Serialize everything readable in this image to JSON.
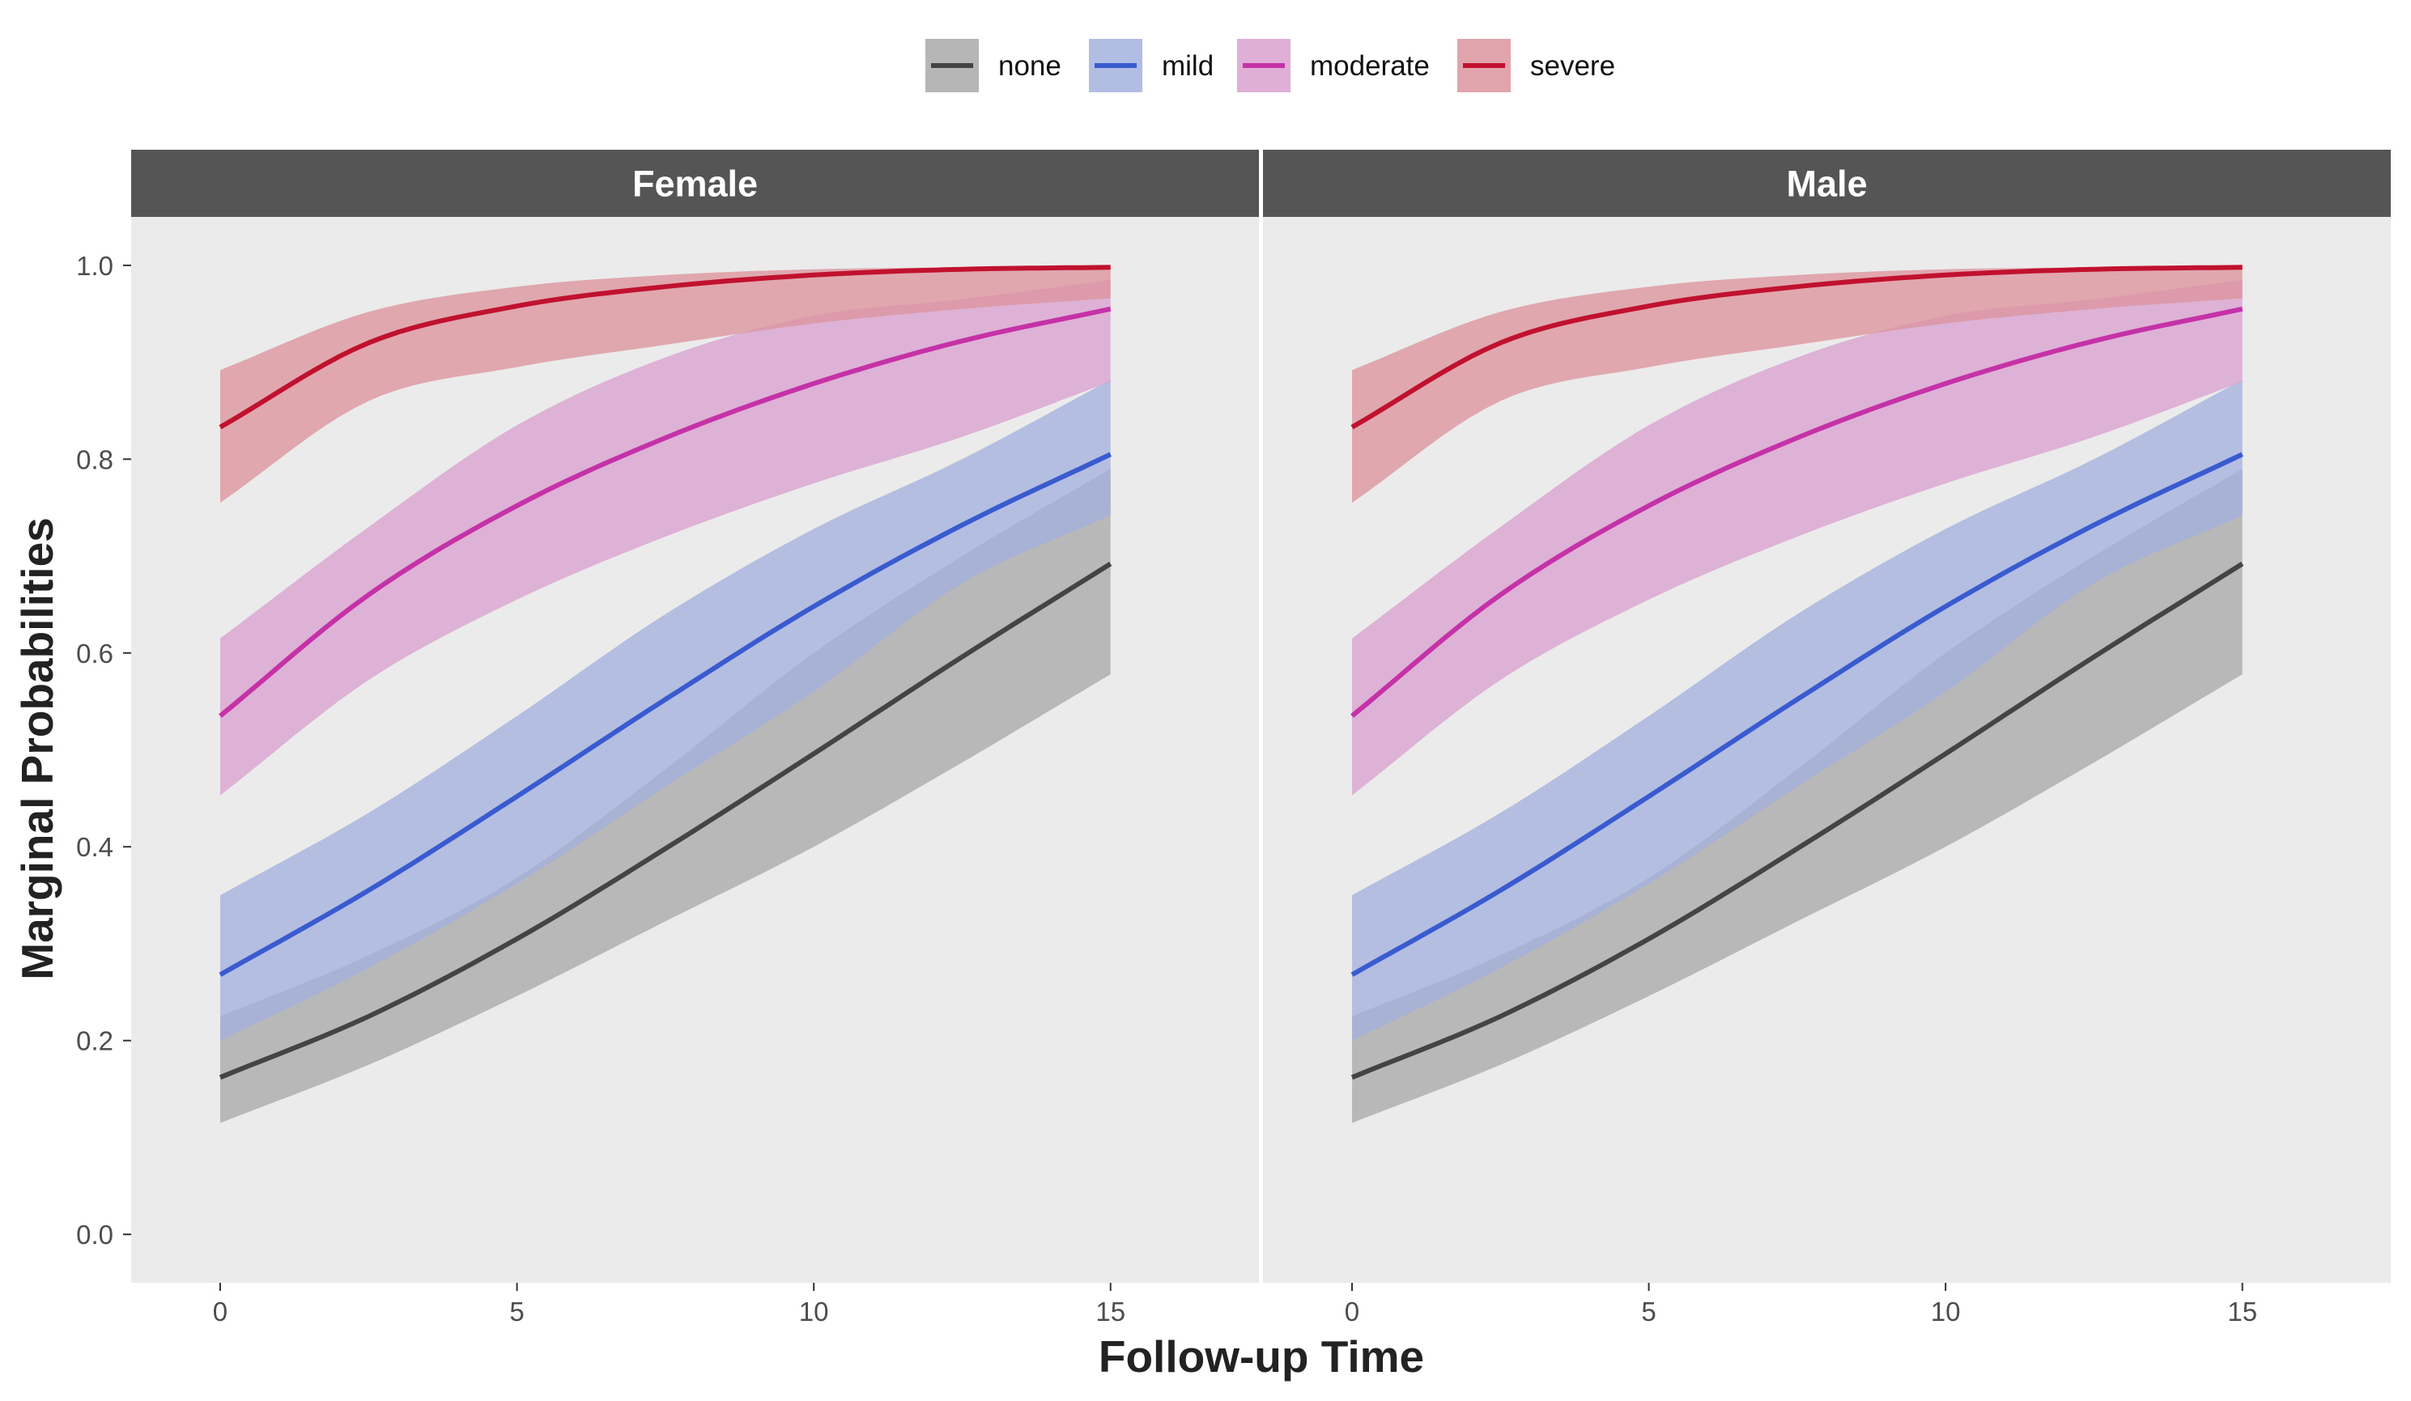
{
  "chart_data": {
    "type": "line",
    "xlabel": "Follow-up Time",
    "ylabel": "Marginal Probabilities",
    "xlim": [
      -1.5,
      17.5
    ],
    "ylim": [
      -0.05,
      1.05
    ],
    "x_ticks": [
      0,
      5,
      10,
      15
    ],
    "y_ticks": [
      0.0,
      0.2,
      0.4,
      0.6,
      0.8,
      1.0
    ],
    "x_tick_labels": [
      "0",
      "5",
      "10",
      "15"
    ],
    "y_tick_labels": [
      "0.0",
      "0.2",
      "0.4",
      "0.6",
      "0.8",
      "1.0"
    ],
    "grid": false,
    "legend_position": "top",
    "panels": [
      {
        "label": "Female"
      },
      {
        "label": "Male"
      }
    ],
    "x": [
      0,
      2.5,
      5,
      7.5,
      10,
      12.5,
      15
    ],
    "series": [
      {
        "name": "none",
        "color": "#444444",
        "fill": "#a9a9a9",
        "values": [
          0.162,
          0.225,
          0.305,
          0.398,
          0.496,
          0.596,
          0.692
        ],
        "lower": [
          0.115,
          0.175,
          0.246,
          0.323,
          0.4,
          0.487,
          0.578
        ],
        "upper": [
          0.225,
          0.288,
          0.368,
          0.48,
          0.6,
          0.7,
          0.79
        ]
      },
      {
        "name": "mild",
        "color": "#3a5bd0",
        "fill": "#a3b1de",
        "values": [
          0.268,
          0.355,
          0.452,
          0.552,
          0.648,
          0.732,
          0.805
        ],
        "lower": [
          0.2,
          0.275,
          0.362,
          0.462,
          0.56,
          0.672,
          0.742
        ],
        "upper": [
          0.35,
          0.435,
          0.535,
          0.64,
          0.728,
          0.8,
          0.882
        ]
      },
      {
        "name": "moderate",
        "color": "#c532a8",
        "fill": "#daa1d0",
        "values": [
          0.535,
          0.66,
          0.752,
          0.822,
          0.878,
          0.922,
          0.955
        ],
        "lower": [
          0.453,
          0.572,
          0.655,
          0.72,
          0.775,
          0.823,
          0.88
        ],
        "upper": [
          0.615,
          0.73,
          0.835,
          0.905,
          0.948,
          0.965,
          0.985
        ]
      },
      {
        "name": "severe",
        "color": "#c0122f",
        "fill": "#dc949e",
        "values": [
          0.833,
          0.92,
          0.958,
          0.978,
          0.99,
          0.996,
          0.998
        ],
        "lower": [
          0.755,
          0.86,
          0.895,
          0.918,
          0.94,
          0.955,
          0.966
        ],
        "upper": [
          0.892,
          0.952,
          0.978,
          0.99,
          0.996,
          0.998,
          1.0
        ]
      }
    ]
  }
}
